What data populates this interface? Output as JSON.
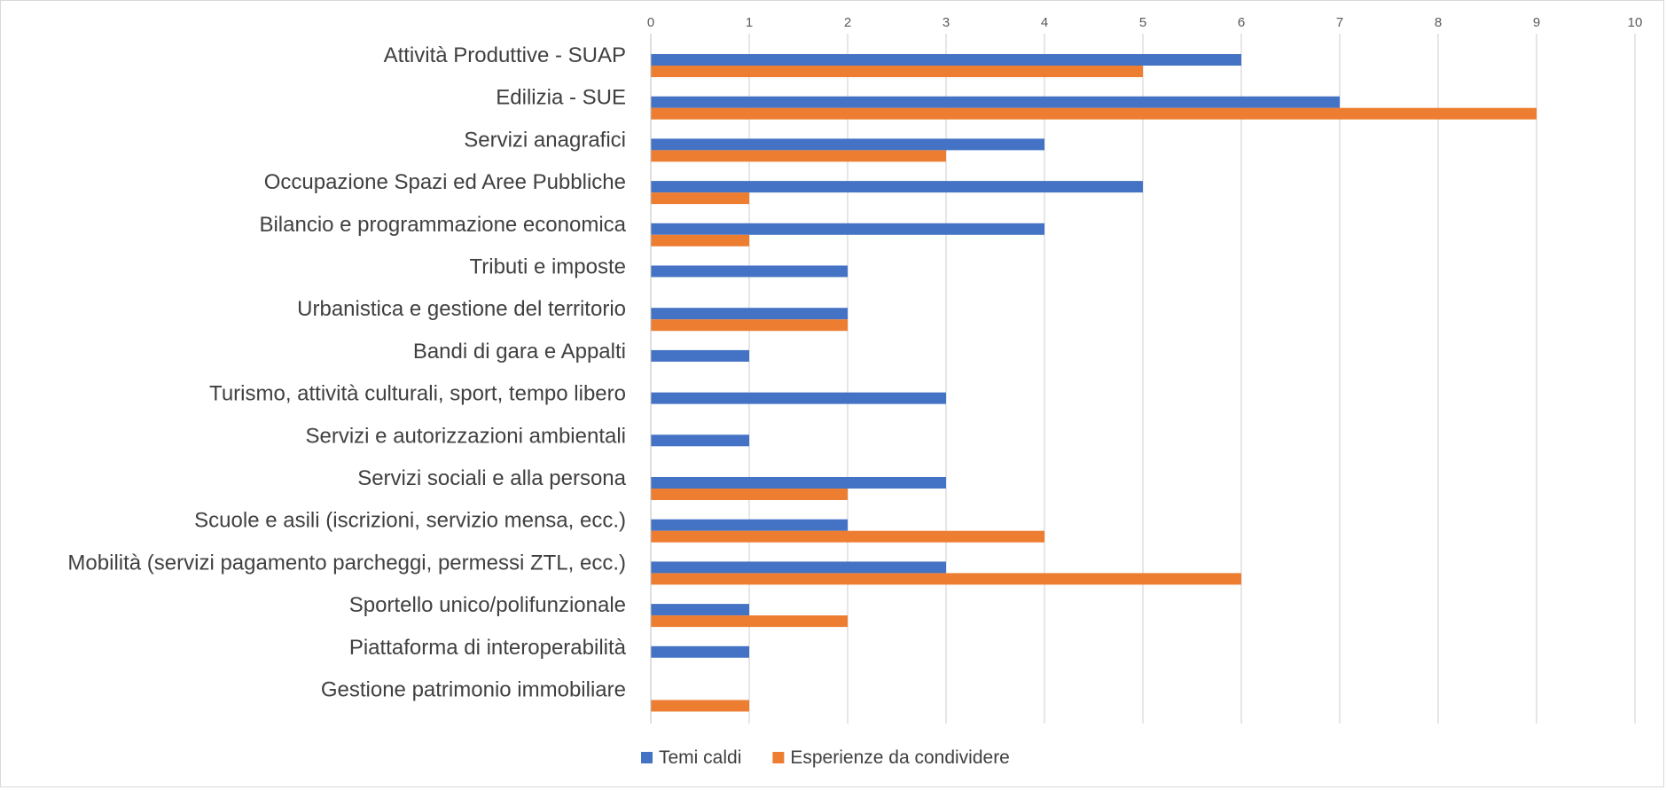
{
  "chart_data": {
    "type": "bar",
    "orientation": "horizontal",
    "title": "",
    "xlabel": "",
    "ylabel": "",
    "xlim": [
      0,
      10
    ],
    "x_ticks": [
      "0",
      "1",
      "2",
      "3",
      "4",
      "5",
      "6",
      "7",
      "8",
      "9",
      "10"
    ],
    "x_axis_position": "top",
    "grid": true,
    "legend_position": "bottom",
    "categories": [
      "Attività Produttive - SUAP",
      "Edilizia - SUE",
      "Servizi anagrafici",
      "Occupazione Spazi ed Aree Pubbliche",
      "Bilancio e programmazione economica",
      "Tributi e imposte",
      "Urbanistica e gestione del territorio",
      "Bandi di gara e Appalti",
      "Turismo, attività culturali, sport, tempo libero",
      "Servizi e autorizzazioni ambientali",
      "Servizi sociali e alla persona",
      "Scuole e asili (iscrizioni, servizio mensa, ecc.)",
      "Mobilità (servizi pagamento parcheggi, permessi ZTL, ecc.)",
      "Sportello unico/polifunzionale",
      "Piattaforma di interoperabilità",
      "Gestione patrimonio immobiliare"
    ],
    "series": [
      {
        "name": "Temi caldi",
        "color": "#4472c4",
        "values": [
          6,
          7,
          4,
          5,
          4,
          2,
          2,
          1,
          3,
          1,
          3,
          2,
          3,
          1,
          1,
          0
        ]
      },
      {
        "name": "Esperienze da condividere",
        "color": "#ed7d31",
        "values": [
          5,
          9,
          3,
          1,
          1,
          0,
          2,
          0,
          0,
          0,
          2,
          4,
          6,
          2,
          0,
          1
        ]
      }
    ]
  }
}
